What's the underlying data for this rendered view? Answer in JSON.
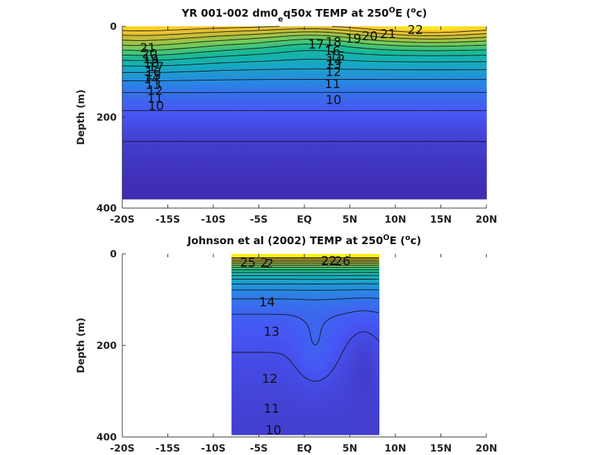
{
  "chart_data": [
    {
      "type": "contour",
      "title": "YR 001-002 dm0",
      "title_sub": "e",
      "title_rest": "q50x TEMP at 250",
      "title_sup": "O",
      "title_unit": "E (",
      "title_unit_sup": "o",
      "title_end": "c)",
      "ylabel": "Depth (m)",
      "xlim": [
        -20,
        20
      ],
      "ylim": [
        0,
        400
      ],
      "y_reversed": true,
      "x_ticks": [
        -20,
        -15,
        -10,
        -5,
        0,
        5,
        10,
        15,
        20
      ],
      "x_tick_labels": [
        "-20S",
        "-15S",
        "-10S",
        "-5S",
        "EQ",
        "5N",
        "10N",
        "15N",
        "20N"
      ],
      "y_ticks": [
        0,
        200,
        400
      ],
      "y_tick_labels": [
        "0",
        "200",
        "400"
      ],
      "data_xlim": [
        -20,
        20
      ],
      "data_ylim": [
        0,
        380
      ],
      "contour_levels": [
        10,
        11,
        12,
        13,
        14,
        15,
        16,
        17,
        18,
        19,
        20,
        21,
        22
      ],
      "contour_labels": [
        {
          "text": "22",
          "x": 12.2,
          "y": 8
        },
        {
          "text": "21",
          "x": 9.2,
          "y": 17
        },
        {
          "text": "20",
          "x": 7.2,
          "y": 21
        },
        {
          "text": "19",
          "x": 5.4,
          "y": 27
        },
        {
          "text": "18",
          "x": 3.2,
          "y": 34
        },
        {
          "text": "17",
          "x": 1.3,
          "y": 40
        },
        {
          "text": "16",
          "x": 3.1,
          "y": 54
        },
        {
          "text": "15",
          "x": 3.6,
          "y": 66
        },
        {
          "text": "14",
          "x": 3.3,
          "y": 76
        },
        {
          "text": "13",
          "x": 3.2,
          "y": 85
        },
        {
          "text": "12",
          "x": 3.2,
          "y": 100
        },
        {
          "text": "11",
          "x": 3.1,
          "y": 127
        },
        {
          "text": "10",
          "x": 3.2,
          "y": 162
        },
        {
          "text": "21",
          "x": -17.2,
          "y": 47
        },
        {
          "text": "20",
          "x": -17.0,
          "y": 60
        },
        {
          "text": "19",
          "x": -16.9,
          "y": 72
        },
        {
          "text": "18",
          "x": -16.8,
          "y": 81
        },
        {
          "text": "17",
          "x": -16.3,
          "y": 89
        },
        {
          "text": "16",
          "x": -16.6,
          "y": 101
        },
        {
          "text": "15",
          "x": -16.6,
          "y": 108
        },
        {
          "text": "14",
          "x": -16.8,
          "y": 116
        },
        {
          "text": "13",
          "x": -16.6,
          "y": 128
        },
        {
          "text": "12",
          "x": -16.4,
          "y": 141
        },
        {
          "text": "11",
          "x": -16.4,
          "y": 159
        },
        {
          "text": "10",
          "x": -16.3,
          "y": 175
        }
      ]
    },
    {
      "type": "contour",
      "title": "Johnson et al (2002) TEMP at 250",
      "title_sup": "O",
      "title_unit": "E (",
      "title_unit_sup": "o",
      "title_end": "c)",
      "ylabel": "Depth (m)",
      "xlim": [
        -20,
        20
      ],
      "ylim": [
        0,
        400
      ],
      "y_reversed": true,
      "x_ticks": [
        -20,
        -15,
        -10,
        -5,
        0,
        5,
        10,
        15,
        20
      ],
      "x_tick_labels": [
        "-20S",
        "-15S",
        "-10S",
        "-5S",
        "EQ",
        "5N",
        "10N",
        "15N",
        "20N"
      ],
      "y_ticks": [
        0,
        200,
        400
      ],
      "y_tick_labels": [
        "0",
        "200",
        "400"
      ],
      "data_xlim": [
        -8,
        8.2
      ],
      "data_ylim": [
        0,
        395
      ],
      "contour_levels": [
        10,
        11,
        12,
        13,
        14,
        15,
        16,
        17,
        18,
        19,
        20,
        21,
        22,
        23,
        24,
        25,
        26
      ],
      "contour_labels": [
        {
          "text": "25",
          "x": -6.2,
          "y": 19
        },
        {
          "text": "2",
          "x": -4.4,
          "y": 20
        },
        {
          "text": "2",
          "x": -3.8,
          "y": 21
        },
        {
          "text": "22",
          "x": 2.7,
          "y": 15
        },
        {
          "text": "26",
          "x": 4.2,
          "y": 16
        },
        {
          "text": "14",
          "x": -4.1,
          "y": 105
        },
        {
          "text": "13",
          "x": -3.6,
          "y": 170
        },
        {
          "text": "12",
          "x": -3.8,
          "y": 273
        },
        {
          "text": "11",
          "x": -3.6,
          "y": 338
        },
        {
          "text": "10",
          "x": -3.4,
          "y": 385
        }
      ]
    }
  ]
}
